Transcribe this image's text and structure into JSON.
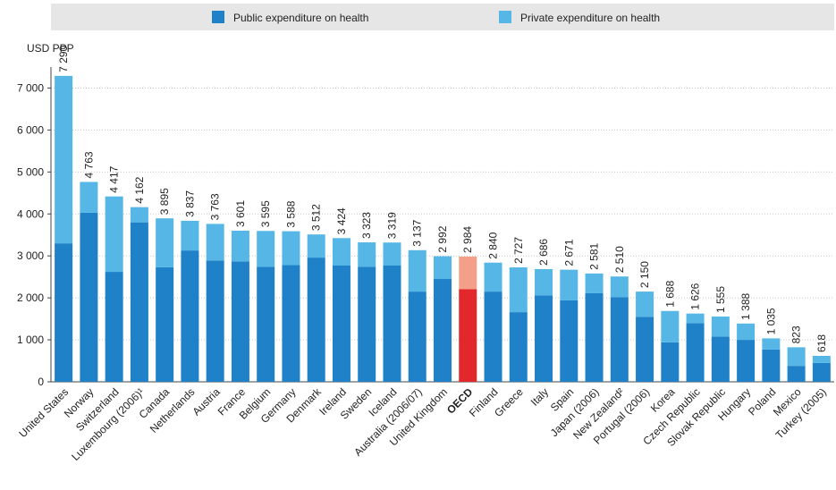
{
  "chart_data": {
    "type": "bar",
    "stacked": true,
    "y_axis_label": "USD PPP",
    "categories": [
      "United States",
      "Norway",
      "Switzerland",
      "Luxembourg (2006)¹",
      "Canada",
      "Netherlands",
      "Austria",
      "France",
      "Belgium",
      "Germany",
      "Denmark",
      "Ireland",
      "Sweden",
      "Iceland",
      "Australia (2006/07)",
      "United Kingdom",
      "OECD",
      "Finland",
      "Greece",
      "Italy",
      "Spain",
      "Japan (2006)",
      "New Zealand²",
      "Portugal (2006)",
      "Korea",
      "Czech Republic",
      "Slovak Republic",
      "Hungary",
      "Poland",
      "Mexico",
      "Turkey (2005)"
    ],
    "highlight": "OECD",
    "series": [
      {
        "name": "Public expenditure on health",
        "color": "#1f82c8",
        "highlight_color": "#e2282a",
        "values": [
          3300,
          4030,
          2620,
          3800,
          2730,
          3130,
          2890,
          2870,
          2740,
          2780,
          2960,
          2770,
          2740,
          2770,
          2150,
          2450,
          2210,
          2150,
          1660,
          2060,
          1940,
          2110,
          2020,
          1550,
          940,
          1400,
          1080,
          1000,
          770,
          380,
          450
        ]
      },
      {
        "name": "Private expenditure on health",
        "color": "#56b7e6",
        "highlight_color": "#f4a088",
        "values": [
          3990,
          733,
          1797,
          362,
          1165,
          707,
          873,
          731,
          855,
          808,
          552,
          654,
          583,
          549,
          987,
          542,
          774,
          690,
          1067,
          626,
          731,
          471,
          490,
          600,
          748,
          226,
          475,
          388,
          265,
          443,
          168
        ]
      }
    ],
    "totals": {
      "values": [
        7290,
        4763,
        4417,
        4162,
        3895,
        3837,
        3763,
        3601,
        3595,
        3588,
        3512,
        3424,
        3323,
        3319,
        3137,
        2992,
        2984,
        2840,
        2727,
        2686,
        2671,
        2581,
        2510,
        2150,
        1688,
        1626,
        1555,
        1388,
        1035,
        823,
        618
      ],
      "value_labels": [
        "7 290",
        "4 763",
        "4 417",
        "4 162",
        "3 895",
        "3 837",
        "3 763",
        "3 601",
        "3 595",
        "3 588",
        "3 512",
        "3 424",
        "3 323",
        "3 319",
        "3 137",
        "2 992",
        "2 984",
        "2 840",
        "2 727",
        "2 686",
        "2 671",
        "2 581",
        "2 510",
        "2 150",
        "1 688",
        "1 626",
        "1 555",
        "1 388",
        "1 035",
        "823",
        "618"
      ]
    },
    "ylim": [
      0,
      7500
    ],
    "yticks": [
      0,
      {
        "value": 1000,
        "label": "1 000"
      },
      {
        "value": 2000,
        "label": "2 000"
      },
      {
        "value": 3000,
        "label": "3 000"
      },
      {
        "value": 4000,
        "label": "4 000"
      },
      {
        "value": 5000,
        "label": "5 000"
      },
      {
        "value": 6000,
        "label": "6 000"
      },
      {
        "value": 7000,
        "label": "7 000"
      }
    ],
    "grid": true
  }
}
